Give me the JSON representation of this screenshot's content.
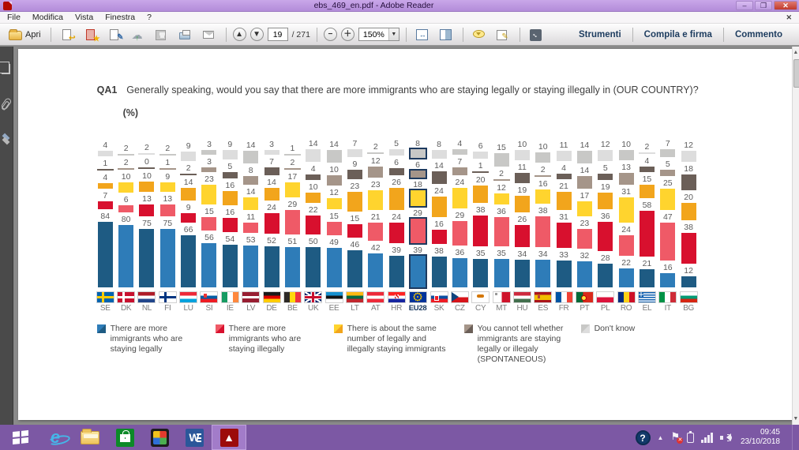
{
  "window": {
    "title": "ebs_469_en.pdf - Adobe Reader"
  },
  "menu": {
    "items": [
      "File",
      "Modifica",
      "Vista",
      "Finestra",
      "?"
    ]
  },
  "toolbar": {
    "open_label": "Apri",
    "page_current": "19",
    "page_total": "/ 271",
    "zoom_level": "150%",
    "right_buttons": [
      "Strumenti",
      "Compila e firma",
      "Commento"
    ]
  },
  "document": {
    "question_id": "QA1",
    "question_text": "Generally speaking, would you say that there are more immigrants who are staying legally or staying illegally in (OUR COUNTRY)?",
    "unit_label": "(%)"
  },
  "chart_data": {
    "type": "bar",
    "stacked": true,
    "unit": "%",
    "ylim": [
      0,
      100
    ],
    "legend_position": "bottom",
    "highlight_category": "EU28",
    "categories": [
      "SE",
      "DK",
      "NL",
      "FI",
      "LU",
      "SI",
      "IE",
      "LV",
      "DE",
      "BE",
      "UK",
      "EE",
      "LT",
      "AT",
      "HR",
      "EU28",
      "SK",
      "CZ",
      "CY",
      "MT",
      "HU",
      "ES",
      "FR",
      "PT",
      "PL",
      "RO",
      "EL",
      "IT",
      "BG"
    ],
    "series": [
      {
        "key": "legally",
        "name": "There are more immigrants who are staying legally",
        "colors": [
          "#1e5b83",
          "#2e7cb8"
        ],
        "values": [
          84,
          80,
          75,
          75,
          66,
          56,
          54,
          53,
          52,
          51,
          50,
          49,
          46,
          42,
          39,
          39,
          38,
          36,
          35,
          35,
          34,
          34,
          33,
          32,
          28,
          22,
          21,
          16,
          12
        ]
      },
      {
        "key": "illegally",
        "name": "There are more immigrants who are staying illegally",
        "colors": [
          "#d8102e",
          "#ef5a67"
        ],
        "values": [
          7,
          6,
          13,
          13,
          9,
          15,
          16,
          11,
          24,
          29,
          22,
          15,
          15,
          21,
          24,
          29,
          16,
          29,
          38,
          36,
          26,
          38,
          31,
          23,
          36,
          24,
          58,
          47,
          38
        ]
      },
      {
        "key": "same-number",
        "name": "There is about the same number of legally and illegally staying immigrants",
        "colors": [
          "#f2a51c",
          "#ffd42e"
        ],
        "values": [
          4,
          10,
          10,
          9,
          14,
          23,
          16,
          14,
          14,
          17,
          10,
          12,
          23,
          23,
          26,
          18,
          24,
          24,
          20,
          12,
          19,
          16,
          21,
          17,
          19,
          31,
          15,
          25,
          20
        ]
      },
      {
        "key": "cannot-tell",
        "name": "You cannot tell whether immigrants are staying legally or illegaly (SPONTANEOUS)",
        "colors": [
          "#6b5f58",
          "#a59589"
        ],
        "values": [
          1,
          2,
          0,
          1,
          2,
          3,
          5,
          8,
          7,
          2,
          4,
          10,
          9,
          12,
          6,
          6,
          14,
          7,
          1,
          2,
          11,
          2,
          4,
          14,
          5,
          13,
          4,
          5,
          18
        ]
      },
      {
        "key": "dont-know",
        "name": "Don't know",
        "colors": [
          "#dddddd",
          "#c8c8c6"
        ],
        "values": [
          4,
          2,
          2,
          2,
          9,
          3,
          9,
          14,
          3,
          1,
          14,
          14,
          7,
          2,
          5,
          8,
          8,
          4,
          6,
          15,
          10,
          10,
          11,
          14,
          12,
          10,
          2,
          7,
          12
        ]
      }
    ]
  },
  "taskbar": {
    "clock_time": "09:45",
    "clock_date": "23/10/2018"
  }
}
